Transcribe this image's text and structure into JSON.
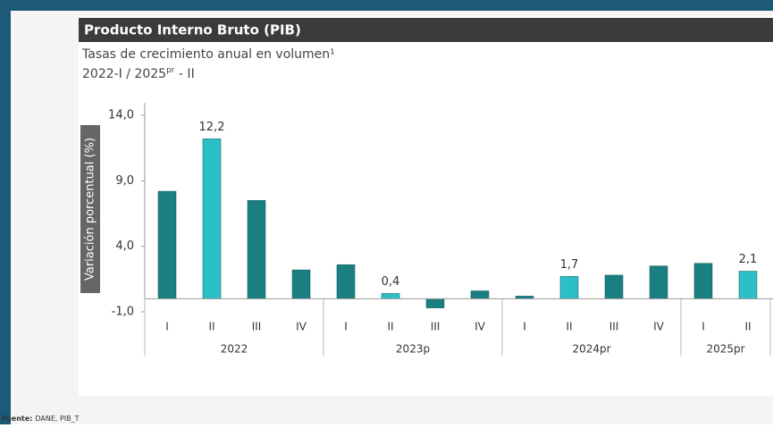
{
  "chart_data": {
    "type": "bar",
    "title": "Producto Interno Bruto (PIB)",
    "subtitle": "Tasas de crecimiento anual en volumen¹",
    "subtitle2": {
      "start": "2022-I / 2025",
      "sup": "pr",
      "end": " - II"
    },
    "ylabel": "Variación porcentual (%)",
    "groups": [
      {
        "name": "2022",
        "quarters": [
          "I",
          "II",
          "III",
          "IV"
        ]
      },
      {
        "name": "2023p",
        "quarters": [
          "I",
          "II",
          "III",
          "IV"
        ]
      },
      {
        "name": "2024pr",
        "quarters": [
          "I",
          "II",
          "III",
          "IV"
        ]
      },
      {
        "name": "2025pr",
        "quarters": [
          "I",
          "II"
        ]
      }
    ],
    "values": [
      8.2,
      12.2,
      7.5,
      2.2,
      2.6,
      0.4,
      -0.7,
      0.6,
      0.2,
      1.7,
      1.8,
      2.5,
      2.7,
      2.1
    ],
    "value_labels": [
      null,
      "12,2",
      null,
      null,
      null,
      "0,4",
      null,
      null,
      null,
      "1,7",
      null,
      null,
      null,
      "2,1"
    ],
    "colors": [
      "#1a7f80",
      "#2cc0c6",
      "#1a7f80",
      "#1a7f80",
      "#1a7f80",
      "#2cc0c6",
      "#1a7f80",
      "#1a7f80",
      "#1a7f80",
      "#2cc0c6",
      "#1a7f80",
      "#1a7f80",
      "#1a7f80",
      "#2cc0c6"
    ],
    "ylim": [
      -1,
      14
    ],
    "yticks": [
      {
        "value": -1,
        "label": "-1,0"
      },
      {
        "value": 4,
        "label": "4,0"
      },
      {
        "value": 9,
        "label": "9,0"
      },
      {
        "value": 14,
        "label": "14,0"
      }
    ],
    "source_label": "Fuente:",
    "source_text": "DANE, PIB_T"
  }
}
